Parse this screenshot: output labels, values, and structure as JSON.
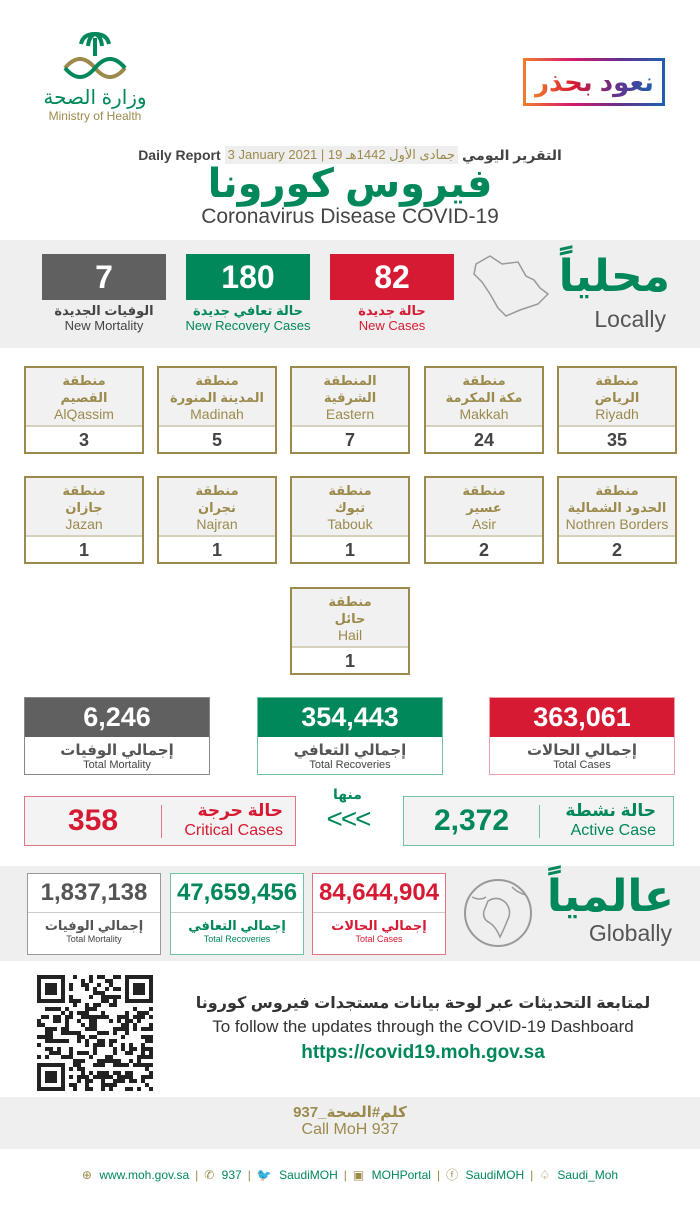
{
  "logos": {
    "moh_ar": "وزارة الصحة",
    "moh_en": "Ministry of Health",
    "campaign": "نعود بحذر"
  },
  "header": {
    "report_ar": "التقرير اليومي",
    "date_hijri": "19 جمادى الأول 1442هـ",
    "date_gregorian": "3 January 2021",
    "report_en": "Daily Report",
    "title_ar": "فيروس كورونا",
    "title_en": "Coronavirus Disease COVID-19"
  },
  "colors": {
    "green": "#00875a",
    "red": "#d71a33",
    "gray": "#606060",
    "gold": "#9c8a4d"
  },
  "local": {
    "heading_ar": "محلياً",
    "heading_en": "Locally",
    "new_cases": {
      "value": "82",
      "ar": "حالة جديدة",
      "en": "New Cases"
    },
    "new_recoveries": {
      "value": "180",
      "ar": "حالة تعافي جديدة",
      "en": "New Recovery Cases"
    },
    "new_mortality": {
      "value": "7",
      "ar": "الوفيات الجديدة",
      "en": "New Mortality"
    }
  },
  "regions": [
    {
      "prefix": "منطقة",
      "ar": "الرياض",
      "en": "Riyadh",
      "value": "35"
    },
    {
      "prefix": "منطقة",
      "ar": "مكة المكرمة",
      "en": "Makkah",
      "value": "24"
    },
    {
      "prefix": "المنطقة",
      "ar": "الشرقية",
      "en": "Eastern",
      "value": "7"
    },
    {
      "prefix": "منطقة",
      "ar": "المدينة المنورة",
      "en": "Madinah",
      "value": "5"
    },
    {
      "prefix": "منطقة",
      "ar": "القصيم",
      "en": "AlQassim",
      "value": "3"
    },
    {
      "prefix": "منطقة",
      "ar": "الحدود الشمالية",
      "en": "Nothren Borders",
      "value": "2"
    },
    {
      "prefix": "منطقة",
      "ar": "عسير",
      "en": "Asir",
      "value": "2"
    },
    {
      "prefix": "منطقة",
      "ar": "تبوك",
      "en": "Tabouk",
      "value": "1"
    },
    {
      "prefix": "منطقة",
      "ar": "نجران",
      "en": "Najran",
      "value": "1"
    },
    {
      "prefix": "منطقة",
      "ar": "جازان",
      "en": "Jazan",
      "value": "1"
    },
    {
      "prefix": "منطقة",
      "ar": "حائل",
      "en": "Hail",
      "value": "1"
    }
  ],
  "totals": {
    "cases": {
      "value": "363,061",
      "ar": "إجمالي الحالات",
      "en": "Total Cases"
    },
    "recoveries": {
      "value": "354,443",
      "ar": "إجمالي التعافي",
      "en": "Total Recoveries"
    },
    "mortality": {
      "value": "6,246",
      "ar": "إجمالي الوفيات",
      "en": "Total Mortality"
    }
  },
  "of_which": "منها",
  "arrows": "<<<",
  "active": {
    "value": "2,372",
    "ar": "حالة نشطة",
    "en": "Active Case"
  },
  "critical": {
    "value": "358",
    "ar": "حالة حرجة",
    "en": "Critical Cases"
  },
  "global": {
    "heading_ar": "عالمياً",
    "heading_en": "Globally",
    "cases": {
      "value": "84,644,904",
      "ar": "إجمالي الحالات",
      "en": "Total Cases"
    },
    "recoveries": {
      "value": "47,659,456",
      "ar": "إجمالي التعافي",
      "en": "Total Recoveries"
    },
    "mortality": {
      "value": "1,837,138",
      "ar": "إجمالي الوفيات",
      "en": "Total Mortality"
    }
  },
  "dashboard": {
    "text_ar": "لمتابعة التحديثات عبر لوحة بيانات مستجدات فيروس كورونا",
    "text_en": "To follow the updates through the COVID-19 Dashboard",
    "url": "https://covid19.moh.gov.sa"
  },
  "call": {
    "ar": "كلم#الصحة_937",
    "en": "Call MoH 937"
  },
  "footer": [
    {
      "icon": "globe-icon",
      "glyph": "⊕",
      "text": "www.moh.gov.sa"
    },
    {
      "icon": "phone-icon",
      "glyph": "✆",
      "text": "937"
    },
    {
      "icon": "twitter-icon",
      "glyph": "🐦",
      "text": "SaudiMOH"
    },
    {
      "icon": "youtube-icon",
      "glyph": "▣",
      "text": "MOHPortal"
    },
    {
      "icon": "facebook-icon",
      "glyph": "ⓕ",
      "text": "SaudiMOH"
    },
    {
      "icon": "snapchat-icon",
      "glyph": "♤",
      "text": "Saudi_Moh"
    }
  ]
}
